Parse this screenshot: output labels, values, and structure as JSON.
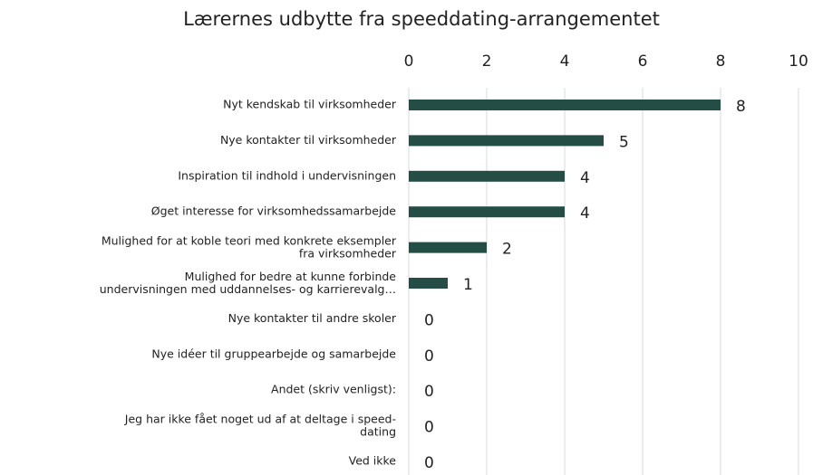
{
  "chart_data": {
    "type": "bar",
    "orientation": "horizontal",
    "title": "Lærernes udbytte fra speeddating-arrangementet",
    "categories": [
      "Nyt kendskab til virksomheder",
      "Nye kontakter til virksomheder",
      "Inspiration til indhold i undervisningen",
      "Øget interesse for virksomhedssamarbejde",
      "Mulighed for at koble teori med konkrete eksempler\nfra virksomheder",
      "Mulighed for bedre at kunne forbinde\nundervisningen med uddannelses- og karrierevalg…",
      "Nye kontakter til andre skoler",
      "Nye idéer til gruppearbejde og samarbejde",
      "Andet (skriv venligst):",
      "Jeg har ikke fået noget ud af at deltage i speed-\ndating",
      "Ved ikke"
    ],
    "values": [
      8,
      5,
      4,
      4,
      2,
      1,
      0,
      0,
      0,
      0,
      0
    ],
    "color": "#234d45",
    "xlim": [
      0,
      10
    ],
    "xticks": [
      0,
      2,
      4,
      6,
      8,
      10
    ],
    "grid": true
  }
}
